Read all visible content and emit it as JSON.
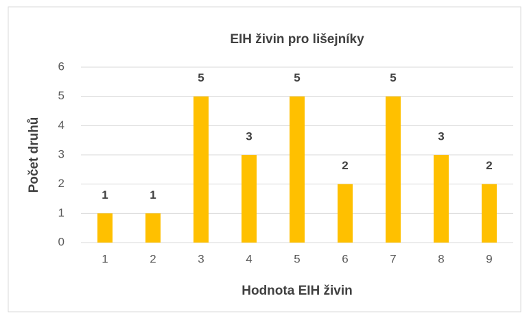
{
  "chart_data": {
    "type": "bar",
    "title": "EIH živin pro lišejníky",
    "x_label": "Hodnota EIH živin",
    "y_label": "Počet druhů",
    "categories": [
      "1",
      "2",
      "3",
      "4",
      "5",
      "6",
      "7",
      "8",
      "9"
    ],
    "values": [
      1,
      1,
      5,
      3,
      5,
      2,
      5,
      3,
      2
    ],
    "color": "#ffc000",
    "ylim": [
      0,
      6
    ],
    "yticks": [
      0,
      1,
      2,
      3,
      4,
      5,
      6
    ],
    "grid": true
  }
}
